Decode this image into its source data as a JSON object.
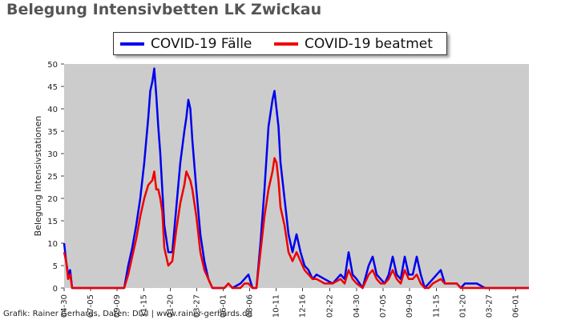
{
  "title": "Belegung Intensivbetten LK Zwickau",
  "credit": "Grafik: Rainer Gerhards, Daten: DIVI | www.rainer-gerhards.de",
  "colors": {
    "plot_bg": "#cccccc",
    "series_faelle": "#0000ee",
    "series_beatmet": "#ee0000"
  },
  "chart_data": {
    "type": "line",
    "ylabel": "Belegung Intensivstationen",
    "ylim": [
      0,
      50
    ],
    "yticks": [
      0,
      5,
      10,
      15,
      20,
      25,
      30,
      35,
      40,
      45,
      50
    ],
    "xlim_days": 1160,
    "xticks": [
      {
        "label": "04-30",
        "day": 0
      },
      {
        "label": "07-05",
        "day": 66
      },
      {
        "label": "09-09",
        "day": 132
      },
      {
        "label": "11-15",
        "day": 199
      },
      {
        "label": "01-20",
        "day": 265
      },
      {
        "label": "03-27",
        "day": 331
      },
      {
        "label": "06-01",
        "day": 397
      },
      {
        "label": "08-06",
        "day": 463
      },
      {
        "label": "10-11",
        "day": 529
      },
      {
        "label": "12-16",
        "day": 595
      },
      {
        "label": "02-22",
        "day": 663
      },
      {
        "label": "04-30",
        "day": 730
      },
      {
        "label": "07-05",
        "day": 796
      },
      {
        "label": "09-09",
        "day": 862
      },
      {
        "label": "11-15",
        "day": 929
      },
      {
        "label": "01-20",
        "day": 995
      },
      {
        "label": "03-27",
        "day": 1061
      },
      {
        "label": "06-01",
        "day": 1127
      }
    ],
    "series": [
      {
        "name": "COVID-19 Fälle",
        "color": "#0000ee",
        "points": [
          [
            0,
            10
          ],
          [
            5,
            6
          ],
          [
            10,
            3
          ],
          [
            15,
            4
          ],
          [
            20,
            0
          ],
          [
            25,
            0
          ],
          [
            60,
            0
          ],
          [
            120,
            0
          ],
          [
            150,
            0
          ],
          [
            160,
            5
          ],
          [
            170,
            9
          ],
          [
            180,
            14
          ],
          [
            190,
            20
          ],
          [
            200,
            28
          ],
          [
            210,
            38
          ],
          [
            215,
            44
          ],
          [
            220,
            46
          ],
          [
            225,
            49
          ],
          [
            230,
            43
          ],
          [
            235,
            36
          ],
          [
            240,
            30
          ],
          [
            245,
            22
          ],
          [
            250,
            14
          ],
          [
            260,
            8
          ],
          [
            270,
            8
          ],
          [
            280,
            18
          ],
          [
            290,
            28
          ],
          [
            300,
            35
          ],
          [
            305,
            38
          ],
          [
            310,
            42
          ],
          [
            315,
            40
          ],
          [
            320,
            33
          ],
          [
            330,
            22
          ],
          [
            340,
            12
          ],
          [
            350,
            6
          ],
          [
            360,
            2
          ],
          [
            370,
            0
          ],
          [
            390,
            0
          ],
          [
            400,
            0
          ],
          [
            410,
            1
          ],
          [
            420,
            0
          ],
          [
            440,
            1
          ],
          [
            450,
            2
          ],
          [
            460,
            3
          ],
          [
            470,
            0
          ],
          [
            480,
            0
          ],
          [
            490,
            10
          ],
          [
            500,
            22
          ],
          [
            510,
            36
          ],
          [
            520,
            42
          ],
          [
            525,
            44
          ],
          [
            530,
            40
          ],
          [
            535,
            36
          ],
          [
            540,
            28
          ],
          [
            550,
            20
          ],
          [
            560,
            12
          ],
          [
            570,
            8
          ],
          [
            580,
            12
          ],
          [
            590,
            8
          ],
          [
            600,
            5
          ],
          [
            610,
            4
          ],
          [
            620,
            2
          ],
          [
            630,
            3
          ],
          [
            650,
            2
          ],
          [
            670,
            1
          ],
          [
            690,
            3
          ],
          [
            700,
            2
          ],
          [
            710,
            8
          ],
          [
            720,
            3
          ],
          [
            730,
            2
          ],
          [
            745,
            0
          ],
          [
            760,
            5
          ],
          [
            770,
            7
          ],
          [
            780,
            3
          ],
          [
            790,
            2
          ],
          [
            800,
            1
          ],
          [
            810,
            3
          ],
          [
            820,
            7
          ],
          [
            830,
            3
          ],
          [
            840,
            2
          ],
          [
            850,
            7
          ],
          [
            860,
            3
          ],
          [
            870,
            3
          ],
          [
            880,
            7
          ],
          [
            890,
            3
          ],
          [
            900,
            0
          ],
          [
            910,
            1
          ],
          [
            920,
            2
          ],
          [
            940,
            4
          ],
          [
            950,
            1
          ],
          [
            960,
            1
          ],
          [
            980,
            1
          ],
          [
            990,
            0
          ],
          [
            1000,
            1
          ],
          [
            1020,
            1
          ],
          [
            1030,
            1
          ],
          [
            1050,
            0
          ],
          [
            1075,
            0
          ],
          [
            1160,
            0
          ]
        ]
      },
      {
        "name": "COVID-19 beatmet",
        "color": "#ee0000",
        "points": [
          [
            0,
            8
          ],
          [
            5,
            6
          ],
          [
            10,
            2
          ],
          [
            15,
            3
          ],
          [
            20,
            0
          ],
          [
            25,
            0
          ],
          [
            60,
            0
          ],
          [
            120,
            0
          ],
          [
            150,
            0
          ],
          [
            160,
            3
          ],
          [
            170,
            7
          ],
          [
            180,
            11
          ],
          [
            190,
            16
          ],
          [
            200,
            20
          ],
          [
            210,
            23
          ],
          [
            220,
            24
          ],
          [
            225,
            26
          ],
          [
            230,
            22
          ],
          [
            235,
            22
          ],
          [
            240,
            20
          ],
          [
            245,
            17
          ],
          [
            250,
            9
          ],
          [
            260,
            5
          ],
          [
            270,
            6
          ],
          [
            280,
            13
          ],
          [
            290,
            19
          ],
          [
            300,
            23
          ],
          [
            305,
            26
          ],
          [
            310,
            25
          ],
          [
            315,
            24
          ],
          [
            320,
            22
          ],
          [
            330,
            16
          ],
          [
            340,
            8
          ],
          [
            350,
            4
          ],
          [
            360,
            2
          ],
          [
            370,
            0
          ],
          [
            390,
            0
          ],
          [
            400,
            0
          ],
          [
            410,
            1
          ],
          [
            420,
            0
          ],
          [
            440,
            0
          ],
          [
            450,
            1
          ],
          [
            460,
            1
          ],
          [
            470,
            0
          ],
          [
            480,
            0
          ],
          [
            490,
            8
          ],
          [
            500,
            16
          ],
          [
            510,
            22
          ],
          [
            520,
            26
          ],
          [
            525,
            29
          ],
          [
            530,
            28
          ],
          [
            535,
            24
          ],
          [
            540,
            18
          ],
          [
            550,
            14
          ],
          [
            560,
            8
          ],
          [
            570,
            6
          ],
          [
            580,
            8
          ],
          [
            590,
            6
          ],
          [
            600,
            4
          ],
          [
            610,
            3
          ],
          [
            620,
            2
          ],
          [
            630,
            2
          ],
          [
            650,
            1
          ],
          [
            670,
            1
          ],
          [
            690,
            2
          ],
          [
            700,
            1
          ],
          [
            710,
            4
          ],
          [
            720,
            2
          ],
          [
            730,
            1
          ],
          [
            745,
            0
          ],
          [
            760,
            3
          ],
          [
            770,
            4
          ],
          [
            780,
            2
          ],
          [
            790,
            1
          ],
          [
            800,
            1
          ],
          [
            810,
            2
          ],
          [
            820,
            4
          ],
          [
            830,
            2
          ],
          [
            840,
            1
          ],
          [
            850,
            4
          ],
          [
            860,
            2
          ],
          [
            870,
            2
          ],
          [
            880,
            3
          ],
          [
            890,
            1
          ],
          [
            900,
            0
          ],
          [
            910,
            0
          ],
          [
            920,
            1
          ],
          [
            940,
            2
          ],
          [
            950,
            1
          ],
          [
            960,
            1
          ],
          [
            980,
            1
          ],
          [
            990,
            0
          ],
          [
            1000,
            0
          ],
          [
            1020,
            0
          ],
          [
            1030,
            0
          ],
          [
            1050,
            0
          ],
          [
            1075,
            0
          ],
          [
            1160,
            0
          ]
        ]
      }
    ]
  }
}
